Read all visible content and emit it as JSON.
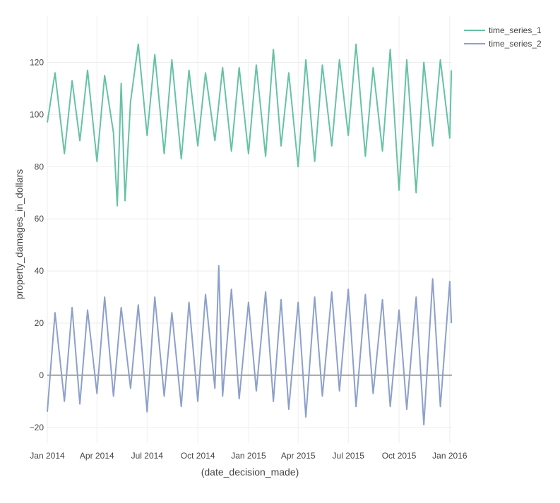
{
  "chart_data": {
    "type": "line",
    "title": "",
    "xlabel": "(date_decision_made)",
    "ylabel": "property_damages_in_dollars",
    "x_range": [
      "2014-01-01",
      "2016-01-05"
    ],
    "x_ticks": [
      {
        "date": "2014-01-01",
        "label": "Jan 2014"
      },
      {
        "date": "2014-04-01",
        "label": "Apr 2014"
      },
      {
        "date": "2014-07-01",
        "label": "Jul 2014"
      },
      {
        "date": "2014-10-01",
        "label": "Oct 2014"
      },
      {
        "date": "2015-01-01",
        "label": "Jan 2015"
      },
      {
        "date": "2015-04-01",
        "label": "Apr 2015"
      },
      {
        "date": "2015-07-01",
        "label": "Jul 2015"
      },
      {
        "date": "2015-10-01",
        "label": "Oct 2015"
      },
      {
        "date": "2016-01-01",
        "label": "Jan 2016"
      }
    ],
    "ylim": [
      -26,
      138
    ],
    "y_ticks": [
      -20,
      0,
      20,
      40,
      60,
      80,
      100,
      120
    ],
    "y_tick_labels": [
      "−20",
      "0",
      "20",
      "40",
      "60",
      "80",
      "100",
      "120"
    ],
    "grid": true,
    "zero_line": true,
    "legend_position": "top-right",
    "series": [
      {
        "name": "time_series_1",
        "color": "#66c2a5",
        "x": [
          "2014-01-01",
          "2014-01-15",
          "2014-02-01",
          "2014-02-15",
          "2014-03-01",
          "2014-03-15",
          "2014-04-01",
          "2014-04-15",
          "2014-05-01",
          "2014-05-08",
          "2014-05-15",
          "2014-05-22",
          "2014-06-01",
          "2014-06-15",
          "2014-07-01",
          "2014-07-15",
          "2014-08-01",
          "2014-08-15",
          "2014-09-01",
          "2014-09-15",
          "2014-10-01",
          "2014-10-15",
          "2014-11-01",
          "2014-11-15",
          "2014-12-01",
          "2014-12-15",
          "2015-01-01",
          "2015-01-15",
          "2015-02-01",
          "2015-02-15",
          "2015-03-01",
          "2015-03-15",
          "2015-04-01",
          "2015-04-15",
          "2015-05-01",
          "2015-05-15",
          "2015-06-01",
          "2015-06-15",
          "2015-07-01",
          "2015-07-15",
          "2015-08-01",
          "2015-08-15",
          "2015-09-01",
          "2015-09-15",
          "2015-10-01",
          "2015-10-15",
          "2015-11-01",
          "2015-11-15",
          "2015-12-01",
          "2015-12-15",
          "2016-01-01",
          "2016-01-04"
        ],
        "y": [
          97,
          116,
          85,
          113,
          90,
          117,
          82,
          115,
          93,
          65,
          112,
          67,
          105,
          127,
          92,
          123,
          85,
          121,
          83,
          117,
          88,
          116,
          90,
          118,
          86,
          118,
          85,
          119,
          84,
          125,
          88,
          116,
          80,
          121,
          82,
          119,
          88,
          121,
          92,
          127,
          84,
          118,
          86,
          125,
          71,
          121,
          70,
          120,
          88,
          121,
          91,
          117
        ]
      },
      {
        "name": "time_series_2",
        "color": "#8da0cb",
        "x": [
          "2014-01-01",
          "2014-01-15",
          "2014-02-01",
          "2014-02-15",
          "2014-03-01",
          "2014-03-15",
          "2014-04-01",
          "2014-04-15",
          "2014-05-01",
          "2014-05-15",
          "2014-06-01",
          "2014-06-15",
          "2014-07-01",
          "2014-07-15",
          "2014-08-01",
          "2014-08-15",
          "2014-09-01",
          "2014-09-15",
          "2014-10-01",
          "2014-10-15",
          "2014-11-01",
          "2014-11-08",
          "2014-11-15",
          "2014-12-01",
          "2014-12-15",
          "2015-01-01",
          "2015-01-15",
          "2015-02-01",
          "2015-02-15",
          "2015-03-01",
          "2015-03-15",
          "2015-04-01",
          "2015-04-15",
          "2015-05-01",
          "2015-05-15",
          "2015-06-01",
          "2015-06-15",
          "2015-07-01",
          "2015-07-15",
          "2015-08-01",
          "2015-08-15",
          "2015-09-01",
          "2015-09-15",
          "2015-10-01",
          "2015-10-15",
          "2015-11-01",
          "2015-11-15",
          "2015-12-01",
          "2015-12-15",
          "2016-01-01",
          "2016-01-04"
        ],
        "y": [
          -14,
          24,
          -10,
          26,
          -11,
          25,
          -7,
          30,
          -8,
          26,
          -5,
          27,
          -14,
          30,
          -8,
          24,
          -12,
          28,
          -10,
          31,
          -5,
          42,
          -8,
          33,
          -9,
          28,
          -6,
          32,
          -10,
          29,
          -13,
          28,
          -16,
          30,
          -8,
          32,
          -6,
          33,
          -12,
          31,
          -7,
          29,
          -12,
          25,
          -13,
          30,
          -19,
          37,
          -12,
          36,
          20
        ]
      }
    ]
  }
}
